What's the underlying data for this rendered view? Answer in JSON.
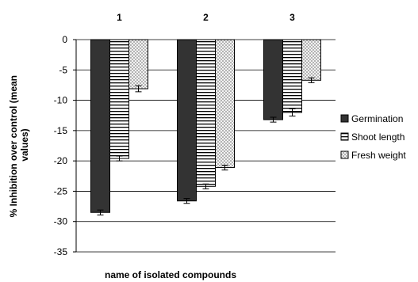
{
  "chart_data": {
    "type": "bar",
    "categories": [
      "1",
      "2",
      "3"
    ],
    "series": [
      {
        "name": "Germination",
        "values": [
          -28.5,
          -26.6,
          -13.2
        ],
        "errors": [
          0.4,
          0.4,
          0.4
        ],
        "pattern": "solid",
        "color": "#333333"
      },
      {
        "name": "Shoot length",
        "values": [
          -19.6,
          -24.2,
          -12.0
        ],
        "errors": [
          0.4,
          0.4,
          0.6
        ],
        "pattern": "horizontal-lines",
        "color": "#000000"
      },
      {
        "name": "Fresh weight",
        "values": [
          -8.1,
          -21.1,
          -6.7
        ],
        "errors": [
          0.5,
          0.4,
          0.4
        ],
        "pattern": "checker",
        "color": "#c8c8c8"
      }
    ],
    "xlabel": "name of isolated compounds",
    "ylabel_lines": [
      "% Inhibition over control (mean",
      "values)"
    ],
    "ylim": [
      -35,
      0
    ],
    "yticks": [
      0,
      -5,
      -10,
      -15,
      -20,
      -25,
      -30,
      -35
    ],
    "ytick_labels": [
      "0",
      "-5",
      "-10",
      "-15",
      "-20",
      "-25",
      "-30",
      "-35"
    ],
    "grid": true,
    "legend_position": "right",
    "category_labels_position": "top"
  }
}
